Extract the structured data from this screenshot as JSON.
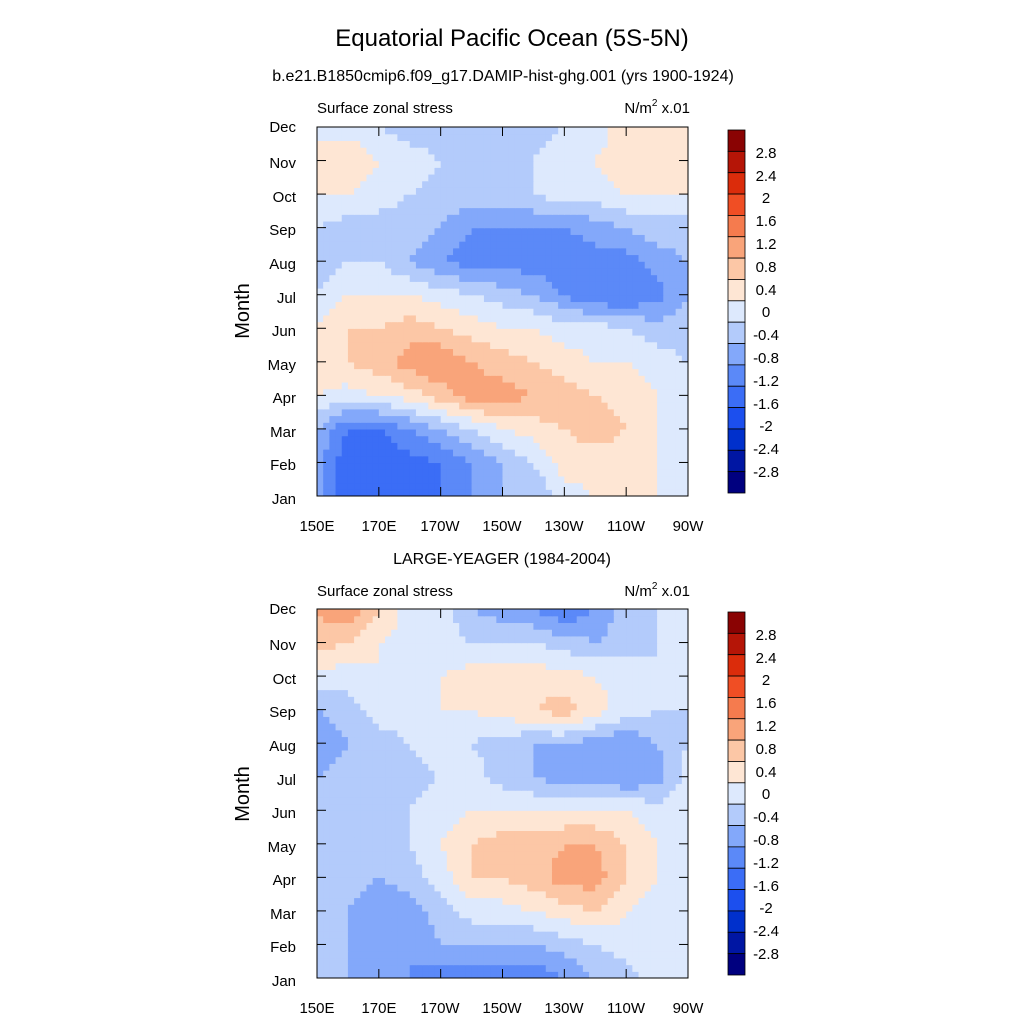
{
  "title": "Equatorial Pacific Ocean (5S-5N)",
  "chart_data": [
    {
      "type": "heatmap",
      "title": "b.e21.B1850cmip6.f09_g17.DAMIP-hist-ghg.001 (yrs 1900-1924)",
      "left_label": "Surface zonal stress",
      "units_label": "N/m",
      "units_sup": "2",
      "units_suffix": " x.01",
      "ylabel": "Month",
      "xlabel": "",
      "x_ticks": [
        "150E",
        "170E",
        "170W",
        "150W",
        "130W",
        "110W",
        "90W"
      ],
      "x_range_deg_east": [
        150,
        270
      ],
      "y_ticks": [
        "Jan",
        "Feb",
        "Mar",
        "Apr",
        "May",
        "Jun",
        "Jul",
        "Aug",
        "Sep",
        "Oct",
        "Nov",
        "Dec"
      ],
      "grid_x_deg_east": [
        150,
        160,
        170,
        180,
        190,
        200,
        210,
        220,
        230,
        240,
        250,
        260,
        270
      ],
      "values": [
        [
          -0.6,
          -1.6,
          -1.6,
          -1.6,
          -1.2,
          -0.8,
          -0.4,
          -0.4,
          0.2,
          0.4,
          0.4,
          0.4,
          0.2
        ],
        [
          -0.6,
          -1.6,
          -1.6,
          -1.4,
          -1.2,
          -0.8,
          -0.4,
          0.0,
          0.6,
          0.6,
          0.6,
          0.4,
          0.2
        ],
        [
          -0.4,
          -1.2,
          -1.2,
          -0.8,
          -0.4,
          0.0,
          0.4,
          0.6,
          0.8,
          1.0,
          0.8,
          0.4,
          0.2
        ],
        [
          0.4,
          0.2,
          0.4,
          0.6,
          1.0,
          1.4,
          1.4,
          1.2,
          1.0,
          0.8,
          0.6,
          0.4,
          0.2
        ],
        [
          0.6,
          0.8,
          1.0,
          1.4,
          1.6,
          1.2,
          1.0,
          0.8,
          0.6,
          0.4,
          0.4,
          0.2,
          0.0
        ],
        [
          0.4,
          0.8,
          0.8,
          1.0,
          0.8,
          0.6,
          0.4,
          0.4,
          0.2,
          0.2,
          0.0,
          -0.2,
          -0.2
        ],
        [
          0.0,
          0.4,
          0.4,
          0.4,
          0.2,
          0.0,
          -0.2,
          -0.4,
          -0.8,
          -1.2,
          -1.2,
          -1.0,
          -0.4
        ],
        [
          -0.2,
          0.0,
          0.0,
          -0.4,
          -0.8,
          -1.0,
          -1.0,
          -1.0,
          -1.2,
          -1.0,
          -1.0,
          -0.6,
          -0.4
        ],
        [
          0.0,
          -0.2,
          -0.2,
          -0.2,
          -0.4,
          -0.8,
          -0.8,
          -0.8,
          -0.8,
          -0.6,
          -0.4,
          -0.2,
          -0.2
        ],
        [
          0.4,
          0.4,
          0.2,
          0.0,
          -0.2,
          -0.2,
          -0.2,
          0.0,
          0.2,
          0.2,
          0.4,
          0.4,
          0.4
        ],
        [
          0.6,
          0.8,
          0.4,
          0.2,
          0.0,
          -0.2,
          0.0,
          0.0,
          0.2,
          0.4,
          0.6,
          0.6,
          0.6
        ],
        [
          0.2,
          0.2,
          0.0,
          -0.2,
          -0.2,
          -0.4,
          -0.2,
          -0.2,
          0.0,
          0.2,
          0.6,
          0.6,
          0.6
        ]
      ]
    },
    {
      "type": "heatmap",
      "title": "LARGE-YEAGER (1984-2004)",
      "left_label": "Surface zonal stress",
      "units_label": "N/m",
      "units_sup": "2",
      "units_suffix": " x.01",
      "ylabel": "Month",
      "xlabel": "",
      "x_ticks": [
        "150E",
        "170E",
        "170W",
        "150W",
        "130W",
        "110W",
        "90W"
      ],
      "x_range_deg_east": [
        150,
        270
      ],
      "y_ticks": [
        "Jan",
        "Feb",
        "Mar",
        "Apr",
        "May",
        "Jun",
        "Jul",
        "Aug",
        "Sep",
        "Oct",
        "Nov",
        "Dec"
      ],
      "grid_x_deg_east": [
        150,
        160,
        170,
        180,
        190,
        200,
        210,
        220,
        230,
        240,
        250,
        260,
        270
      ],
      "values": [
        [
          -0.2,
          -0.4,
          -0.6,
          -0.8,
          -1.0,
          -1.2,
          -1.0,
          -1.2,
          -0.8,
          -0.4,
          -0.2,
          0.2,
          0.2
        ],
        [
          -0.2,
          -0.4,
          -0.8,
          -0.8,
          -0.4,
          -0.4,
          -0.4,
          -0.4,
          -0.2,
          0.0,
          0.2,
          0.2,
          0.2
        ],
        [
          -0.2,
          -0.4,
          -0.8,
          -0.6,
          -0.2,
          0.2,
          0.2,
          0.4,
          0.6,
          0.8,
          0.4,
          0.2,
          0.2
        ],
        [
          -0.2,
          -0.2,
          -0.4,
          -0.2,
          0.2,
          0.8,
          0.8,
          1.0,
          1.4,
          1.4,
          0.8,
          0.4,
          0.2
        ],
        [
          -0.2,
          -0.2,
          -0.2,
          0.0,
          0.4,
          0.8,
          1.0,
          1.0,
          1.2,
          1.2,
          0.8,
          0.4,
          0.2
        ],
        [
          -0.2,
          -0.2,
          -0.2,
          0.0,
          0.2,
          0.4,
          0.4,
          0.4,
          0.4,
          0.4,
          0.4,
          0.2,
          0.2
        ],
        [
          -0.4,
          -0.2,
          -0.2,
          -0.2,
          0.0,
          0.2,
          -0.2,
          -0.4,
          -0.6,
          -0.6,
          -0.8,
          -0.6,
          0.2
        ],
        [
          -0.8,
          -0.4,
          -0.2,
          0.0,
          0.2,
          0.0,
          -0.2,
          -0.4,
          -0.4,
          -0.6,
          -0.8,
          -0.4,
          0.0
        ],
        [
          -0.4,
          -0.2,
          0.2,
          0.2,
          0.4,
          0.4,
          0.6,
          0.8,
          1.0,
          0.6,
          0.2,
          0.0,
          0.0
        ],
        [
          0.2,
          0.2,
          0.4,
          0.4,
          0.4,
          0.6,
          0.6,
          0.6,
          0.6,
          0.4,
          0.2,
          0.0,
          0.2
        ],
        [
          1.0,
          0.8,
          0.4,
          0.2,
          0.2,
          0.0,
          0.0,
          0.0,
          -0.2,
          -0.4,
          -0.2,
          0.0,
          0.2
        ],
        [
          1.2,
          1.6,
          0.8,
          0.2,
          0.2,
          -0.4,
          -0.6,
          -0.8,
          -1.2,
          -0.8,
          -0.2,
          0.0,
          0.2
        ]
      ]
    }
  ],
  "colorbar": {
    "labels": [
      "2.8",
      "2.4",
      "2",
      "1.6",
      "1.2",
      "0.8",
      "0.4",
      "0",
      "-0.4",
      "-0.8",
      "-1.2",
      "-1.6",
      "-2",
      "-2.4",
      "-2.8"
    ],
    "levels": [
      -2.8,
      -2.4,
      -2.0,
      -1.6,
      -1.2,
      -0.8,
      -0.4,
      0.0,
      0.4,
      0.8,
      1.2,
      1.6,
      2.0,
      2.4,
      2.8
    ],
    "colors": [
      "#00007f",
      "#0016a3",
      "#0030cc",
      "#1c4fee",
      "#3b6df6",
      "#5b89f8",
      "#83a8fa",
      "#b3cbfb",
      "#dde9fd",
      "#fee6d4",
      "#fcc7a6",
      "#f9a47a",
      "#f57b4e",
      "#f04e24",
      "#db2c0b",
      "#b51507",
      "#8a0303"
    ]
  }
}
